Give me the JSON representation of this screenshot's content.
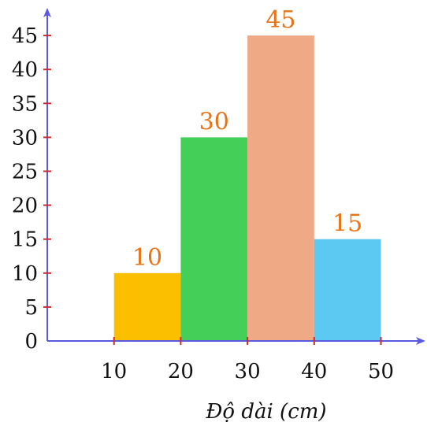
{
  "chart_data": {
    "type": "bar",
    "title": "",
    "xlabel": "Độ dài (cm)",
    "ylabel": "",
    "bins": [
      [
        10,
        20
      ],
      [
        20,
        30
      ],
      [
        30,
        40
      ],
      [
        40,
        50
      ]
    ],
    "values": [
      10,
      30,
      45,
      15
    ],
    "data_labels": [
      "10",
      "30",
      "45",
      "15"
    ],
    "x_ticks": [
      10,
      20,
      30,
      40,
      50
    ],
    "x_tick_labels": [
      "10",
      "20",
      "30",
      "40",
      "50"
    ],
    "y_ticks": [
      0,
      5,
      10,
      15,
      20,
      25,
      30,
      35,
      40,
      45
    ],
    "y_tick_labels": [
      "0",
      "5",
      "10",
      "15",
      "20",
      "25",
      "30",
      "35",
      "40",
      "45"
    ],
    "xlim": [
      0,
      56
    ],
    "ylim": [
      0,
      48.5
    ],
    "grid": false,
    "legend": "none",
    "colors": {
      "bars": [
        "#fbbf00",
        "#44cf58",
        "#f0a985",
        "#5cc9f2"
      ],
      "axis": "#5a5ae0",
      "tick_marks": "#d22a2a",
      "data_labels": "#e8741a"
    }
  }
}
